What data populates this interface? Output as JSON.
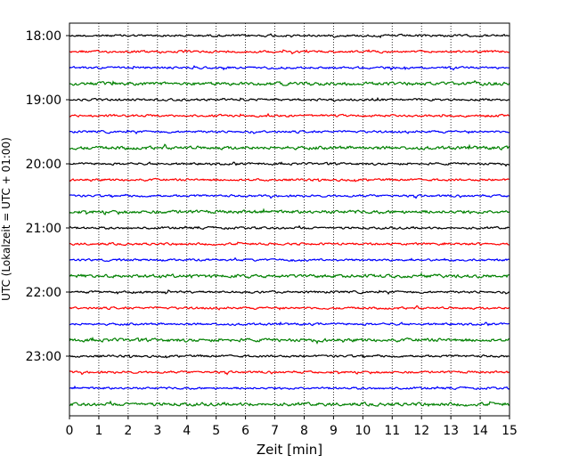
{
  "chart_data": {
    "type": "line",
    "title": "",
    "xlabel": "Zeit  [min]",
    "ylabel": "UTC (Lokalzeit = UTC + 01:00)",
    "xlim": [
      0,
      15
    ],
    "x_ticks": [
      "0",
      "1",
      "2",
      "3",
      "4",
      "5",
      "6",
      "7",
      "8",
      "9",
      "10",
      "11",
      "12",
      "13",
      "14",
      "15"
    ],
    "y_ticks": [
      "18:00",
      "19:00",
      "20:00",
      "21:00",
      "22:00",
      "23:00"
    ],
    "grid": "vertical-dotted",
    "trace_start_times": [
      "18:00",
      "18:15",
      "18:30",
      "18:45",
      "19:00",
      "19:15",
      "19:30",
      "19:45",
      "20:00",
      "20:15",
      "20:30",
      "20:45",
      "21:00",
      "21:15",
      "21:30",
      "21:45",
      "22:00",
      "22:15",
      "22:30",
      "22:45",
      "23:00",
      "23:15",
      "23:30",
      "23:45"
    ],
    "trace_colors": [
      "#000000",
      "#ff0000",
      "#0000ff",
      "#008000"
    ]
  }
}
